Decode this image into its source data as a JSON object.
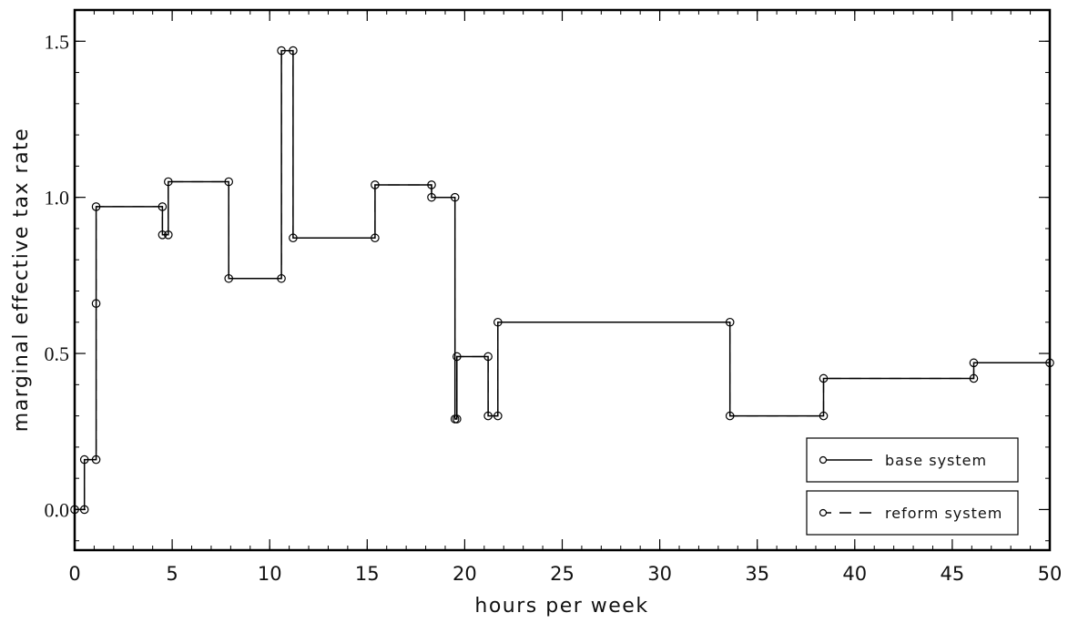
{
  "chart_data": {
    "type": "line",
    "xlabel": "hours per week",
    "ylabel": "marginal effective tax rate",
    "xlim": [
      0,
      50
    ],
    "ylim": [
      -0.13,
      1.6
    ],
    "xticks": [
      0,
      5,
      10,
      15,
      20,
      25,
      30,
      35,
      40,
      45,
      50
    ],
    "xtick_labels": [
      "0",
      "5",
      "10",
      "15",
      "20",
      "25",
      "30",
      "35",
      "40",
      "45",
      "50"
    ],
    "yticks": [
      0.0,
      0.5,
      1.0,
      1.5
    ],
    "ytick_labels": [
      "0.0",
      "0.5",
      "1.0",
      "1.5"
    ],
    "grid": false,
    "legend_position": "bottom-right",
    "series": [
      {
        "name": "base system",
        "style": "solid",
        "x": [
          0,
          0.5,
          0.5,
          1.1,
          1.1,
          1.1,
          4.5,
          4.5,
          4.8,
          4.8,
          7.9,
          7.9,
          10.6,
          10.6,
          11.2,
          11.2,
          15.4,
          15.4,
          18.3,
          18.3,
          19.5,
          19.5,
          19.6,
          19.6,
          21.2,
          21.2,
          21.7,
          21.7,
          33.6,
          33.6,
          38.4,
          38.4,
          46.1,
          46.1,
          50
        ],
        "y": [
          0.0,
          0.0,
          0.16,
          0.16,
          0.66,
          0.97,
          0.97,
          0.88,
          0.88,
          1.05,
          1.05,
          0.74,
          0.74,
          1.47,
          1.47,
          0.87,
          0.87,
          1.04,
          1.04,
          1.0,
          1.0,
          0.29,
          0.29,
          0.49,
          0.49,
          0.3,
          0.3,
          0.6,
          0.6,
          0.3,
          0.3,
          0.42,
          0.42,
          0.47,
          0.47
        ]
      },
      {
        "name": "reform system",
        "style": "dashed",
        "x": [
          0,
          0.5,
          0.5,
          1.1,
          1.1,
          1.1,
          4.5,
          4.5,
          4.8,
          4.8,
          7.9,
          7.9,
          10.6,
          10.6,
          11.2,
          11.2,
          15.4,
          15.4,
          18.3,
          18.3,
          19.5,
          19.5,
          19.6,
          19.6,
          21.2,
          21.2,
          21.7,
          21.7,
          33.6,
          33.6,
          38.4,
          38.4,
          46.1,
          46.1,
          50
        ],
        "y": [
          0.0,
          0.0,
          0.16,
          0.16,
          0.66,
          0.97,
          0.97,
          0.88,
          0.88,
          1.05,
          1.05,
          0.74,
          0.74,
          1.47,
          1.47,
          0.87,
          0.87,
          1.04,
          1.04,
          1.0,
          1.0,
          0.29,
          0.29,
          0.49,
          0.49,
          0.3,
          0.3,
          0.6,
          0.6,
          0.3,
          0.3,
          0.42,
          0.42,
          0.47,
          0.47
        ]
      }
    ]
  }
}
